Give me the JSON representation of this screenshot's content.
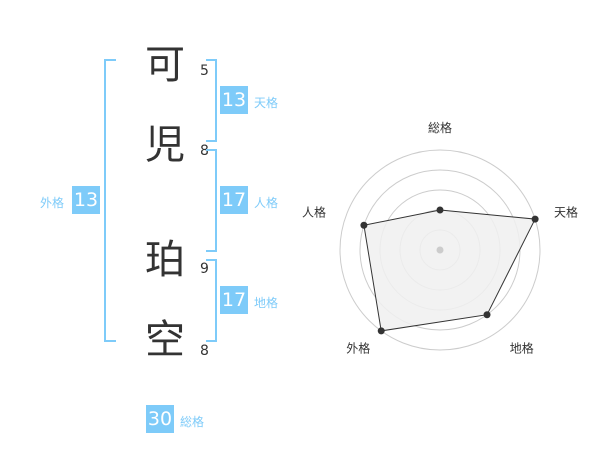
{
  "name": [
    {
      "char": "可",
      "strokes": "5"
    },
    {
      "char": "児",
      "strokes": "8"
    },
    {
      "char": "珀",
      "strokes": "9"
    },
    {
      "char": "空",
      "strokes": "8"
    }
  ],
  "fortunes": {
    "tenkaku": {
      "label": "天格",
      "value": "13"
    },
    "jinkaku": {
      "label": "人格",
      "value": "17"
    },
    "chikaku": {
      "label": "地格",
      "value": "17"
    },
    "gaikaku": {
      "label": "外格",
      "value": "13"
    },
    "soukaku": {
      "label": "総格",
      "value": "30"
    }
  },
  "colors": {
    "accent": "#7ecbf9",
    "radar_fill": "#f0f0f0",
    "radar_line": "#333333"
  },
  "chart_data": {
    "type": "radar",
    "categories": [
      "総格",
      "天格",
      "地格",
      "外格",
      "人格"
    ],
    "values": [
      2,
      5,
      4,
      5,
      4
    ],
    "range": [
      0,
      5
    ],
    "grid": true
  }
}
